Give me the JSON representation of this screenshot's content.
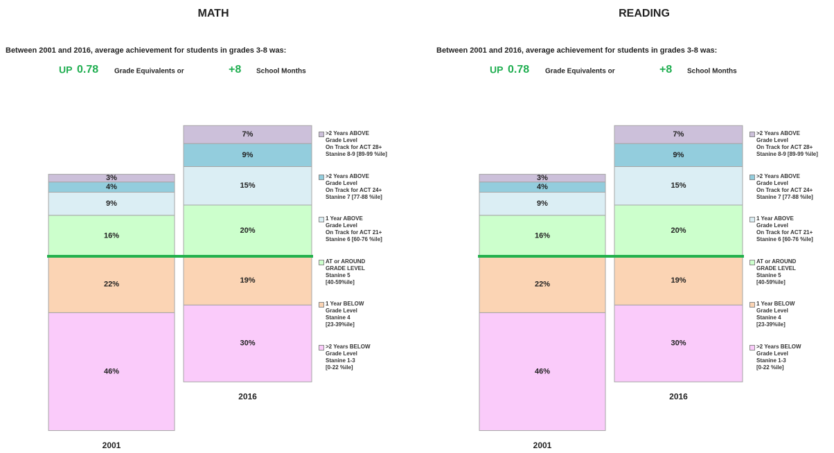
{
  "chart_data": [
    {
      "type": "stacked-bar",
      "title": "MATH",
      "subtitle": "Between 2001 and 2016, average achievement for students in grades 3-8 was:",
      "change_direction": "UP",
      "change_value": 0.78,
      "change_unit": "Grade Equivalents or",
      "months_change": "+8",
      "months_unit": "School Months",
      "categories": [
        "2001",
        "2016"
      ],
      "series": [
        {
          "name": ">2 Years BELOW\nGrade Level\nStanine 1-3\n[0-22 %ile]",
          "color": "#facbfa",
          "values": [
            46,
            30
          ],
          "value_labels": [
            "46%",
            "30%"
          ]
        },
        {
          "name": "1 Year BELOW\nGrade Level\nStanine 4\n[23-39%ile]",
          "color": "#fbd4b4",
          "values": [
            22,
            19
          ],
          "value_labels": [
            "22%",
            "19%"
          ]
        },
        {
          "name": "AT or AROUND\nGRADE LEVEL\nStanine 5\n[40-59%ile]",
          "color": "#ccffcc",
          "values": [
            16,
            20
          ],
          "value_labels": [
            "16%",
            "20%"
          ]
        },
        {
          "name": "1 Year ABOVE\nGrade Level\nOn Track for ACT 21+\nStanine 6 [60-76 %ile]",
          "color": "#dbeef4",
          "values": [
            9,
            15
          ],
          "value_labels": [
            "9%",
            "15%"
          ]
        },
        {
          "name": ">2 Years ABOVE\nGrade Level\nOn Track for ACT 24+\nStanine 7 [77-88 %ile]",
          "color": "#93cddd",
          "values": [
            4,
            9
          ],
          "value_labels": [
            "4%",
            "9%"
          ]
        },
        {
          "name": ">2 Years ABOVE\nGrade Level\nOn Track for ACT 28+\nStanine 8-9 [89-99 %ile]",
          "color": "#ccc0da",
          "values": [
            3,
            7
          ],
          "value_labels": [
            "3%",
            "7%"
          ]
        }
      ]
    },
    {
      "type": "stacked-bar",
      "title": "READING",
      "subtitle": "Between 2001 and 2016, average achievement for students in grades 3-8 was:",
      "change_direction": "UP",
      "change_value": 0.78,
      "change_unit": "Grade Equivalents or",
      "months_change": "+8",
      "months_unit": "School Months",
      "categories": [
        "2001",
        "2016"
      ],
      "series": [
        {
          "name": ">2 Years BELOW\nGrade Level\nStanine 1-3\n[0-22 %ile]",
          "color": "#facbfa",
          "values": [
            46,
            30
          ],
          "value_labels": [
            "46%",
            "30%"
          ]
        },
        {
          "name": "1 Year BELOW\nGrade Level\nStanine 4\n[23-39%ile]",
          "color": "#fbd4b4",
          "values": [
            22,
            19
          ],
          "value_labels": [
            "22%",
            "19%"
          ]
        },
        {
          "name": "AT or AROUND\nGRADE LEVEL\nStanine 5\n[40-59%ile]",
          "color": "#ccffcc",
          "values": [
            16,
            20
          ],
          "value_labels": [
            "16%",
            "20%"
          ]
        },
        {
          "name": "1 Year ABOVE\nGrade Level\nOn Track for ACT 21+\nStanine 6 [60-76 %ile]",
          "color": "#dbeef4",
          "values": [
            9,
            15
          ],
          "value_labels": [
            "9%",
            "15%"
          ]
        },
        {
          "name": ">2 Years ABOVE\nGrade Level\nOn Track for ACT 24+\nStanine 7 [77-88 %ile]",
          "color": "#93cddd",
          "values": [
            4,
            9
          ],
          "value_labels": [
            "4%",
            "9%"
          ]
        },
        {
          "name": ">2 Years ABOVE\nGrade Level\nOn Track for ACT 28+\nStanine 8-9 [89-99 %ile]",
          "color": "#ccc0da",
          "values": [
            3,
            7
          ],
          "value_labels": [
            "3%",
            "7%"
          ]
        }
      ]
    }
  ]
}
